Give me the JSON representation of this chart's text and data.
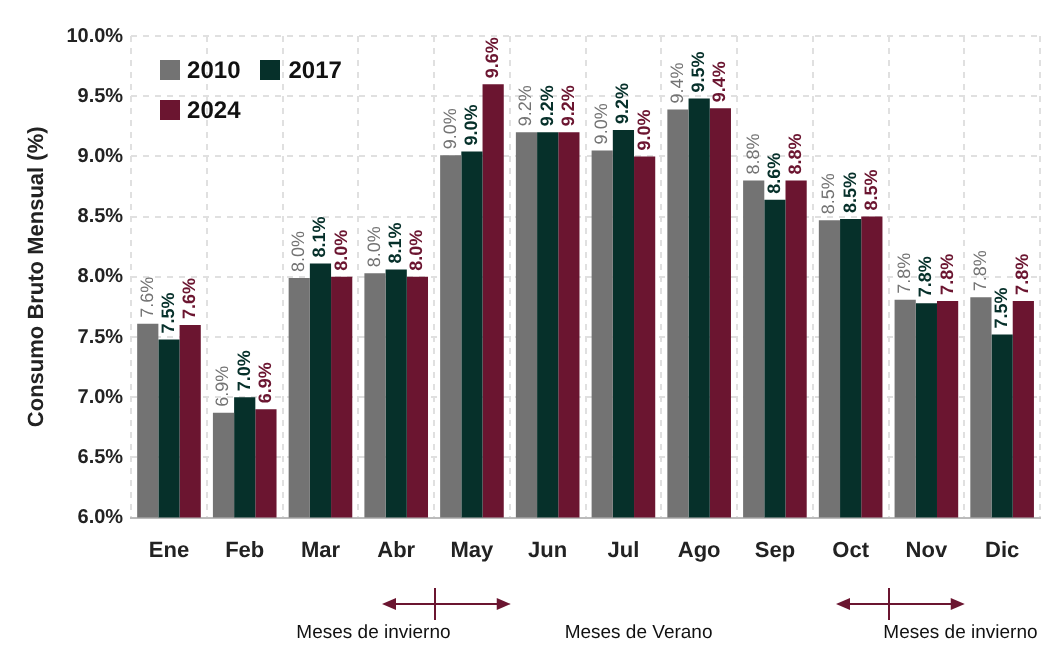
{
  "chart_data": {
    "type": "bar",
    "ylabel": "Consumo Bruto Mensual (%)",
    "categories": [
      "Ene",
      "Feb",
      "Mar",
      "Abr",
      "May",
      "Jun",
      "Jul",
      "Ago",
      "Sep",
      "Oct",
      "Nov",
      "Dic"
    ],
    "series": [
      {
        "name": "2010",
        "color": "#737373",
        "values": [
          7.61,
          6.87,
          7.99,
          8.03,
          9.01,
          9.2,
          9.05,
          9.39,
          8.8,
          8.47,
          7.81,
          7.83
        ],
        "value_labels": [
          "7.6%",
          "6.9%",
          "8.0%",
          "8.0%",
          "9.0%",
          "9.2%",
          "9.0%",
          "9.4%",
          "8.8%",
          "8.5%",
          "7.8%",
          "7.8%"
        ]
      },
      {
        "name": "2017",
        "color": "#06302a",
        "values": [
          7.48,
          7.0,
          8.11,
          8.06,
          9.04,
          9.2,
          9.22,
          9.48,
          8.64,
          8.48,
          7.78,
          7.52
        ],
        "value_labels": [
          "7.5%",
          "7.0%",
          "8.1%",
          "8.1%",
          "9.0%",
          "9.2%",
          "9.2%",
          "9.5%",
          "8.6%",
          "8.5%",
          "7.8%",
          "7.5%"
        ]
      },
      {
        "name": "2024",
        "color": "#6b1530",
        "values": [
          7.6,
          6.9,
          8.0,
          8.0,
          9.6,
          9.2,
          9.0,
          9.4,
          8.8,
          8.5,
          7.8,
          7.8
        ],
        "value_labels": [
          "7.6%",
          "6.9%",
          "8.0%",
          "8.0%",
          "9.6%",
          "9.2%",
          "9.0%",
          "9.4%",
          "8.8%",
          "8.5%",
          "7.8%",
          "7.8%"
        ]
      }
    ],
    "ylim": [
      6,
      10
    ],
    "yticks": [
      {
        "value": 6,
        "label": "6.0%"
      },
      {
        "value": 6.5,
        "label": "6.5%"
      },
      {
        "value": 7,
        "label": "7.0%"
      },
      {
        "value": 7.5,
        "label": "7.5%"
      },
      {
        "value": 8,
        "label": "8.0%"
      },
      {
        "value": 8.5,
        "label": "8.5%"
      },
      {
        "value": 9,
        "label": "9.0%"
      },
      {
        "value": 9.5,
        "label": "9.5%"
      },
      {
        "value": 10,
        "label": "10.0%"
      }
    ],
    "annotations": [
      "Meses de invierno",
      "Meses de Verano",
      "Meses de invierno"
    ],
    "grid": true,
    "legend": "top left"
  }
}
